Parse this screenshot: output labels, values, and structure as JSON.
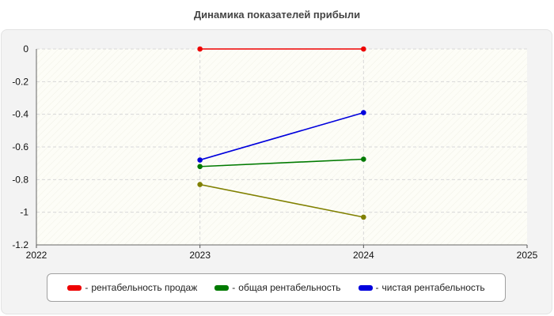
{
  "chart_data": {
    "type": "line",
    "title": "Динамика показателей прибыли",
    "xlabel": "",
    "ylabel": "",
    "x_ticks": [
      "2022",
      "2023",
      "2024",
      "2025"
    ],
    "y_ticks": [
      "0",
      "-0.2",
      "-0.4",
      "-0.6",
      "-0.8",
      "-1",
      "-1.2"
    ],
    "xlim": [
      2022,
      2025
    ],
    "ylim": [
      -1.2,
      0
    ],
    "grid": true,
    "legend_position": "bottom",
    "series": [
      {
        "name": "рентабельность продаж",
        "color": "#ee0000",
        "x": [
          2023,
          2024
        ],
        "y": [
          0,
          0
        ]
      },
      {
        "name": "общая рентабельность",
        "color": "#007a00",
        "x": [
          2023,
          2024
        ],
        "y": [
          -0.72,
          -0.675
        ]
      },
      {
        "name": "чистая рентабельность",
        "color": "#0000dd",
        "x": [
          2023,
          2024
        ],
        "y": [
          -0.68,
          -0.39
        ]
      },
      {
        "name": "",
        "color": "#808000",
        "x": [
          2023,
          2024
        ],
        "y": [
          -0.83,
          -1.03
        ]
      }
    ]
  }
}
